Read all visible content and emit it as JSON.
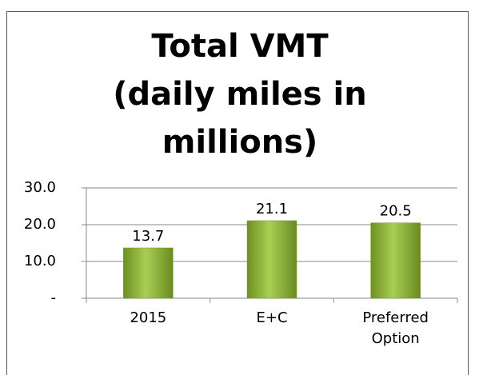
{
  "chart_data": {
    "type": "bar",
    "title": "Total VMT (daily miles in millions)",
    "categories": [
      "2015",
      "E+C",
      "Preferred Option"
    ],
    "values": [
      13.7,
      21.1,
      20.5
    ],
    "color": "#8db33a",
    "ylim": [
      0,
      30
    ],
    "yticks": [
      {
        "value": 0,
        "label": "-"
      },
      {
        "value": 10,
        "label": "10.0"
      },
      {
        "value": 20,
        "label": "20.0"
      },
      {
        "value": 30,
        "label": "30.0"
      }
    ],
    "grid": true
  }
}
